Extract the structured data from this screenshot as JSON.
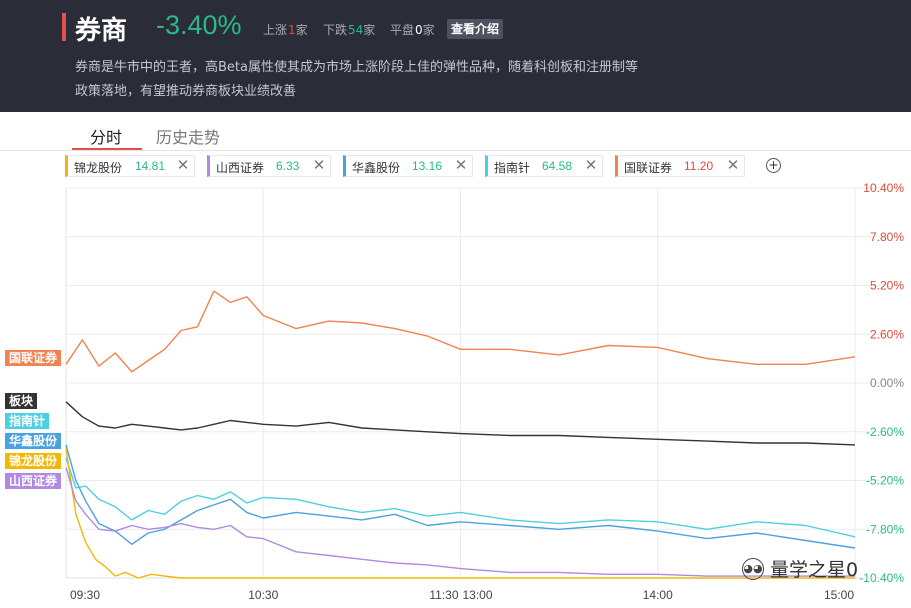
{
  "header": {
    "title": "券商",
    "change": "-3.40%",
    "up_label": "上涨",
    "up_count": "1",
    "down_label": "下跌",
    "down_count": "54",
    "flat_label": "平盘",
    "flat_count": "0",
    "unit": "家",
    "intro_button": "查看介绍",
    "description_line1": "券商是牛市中的王者，高Beta属性使其成为市场上涨阶段上佳的弹性品种，随着科创板和注册制等",
    "description_line2": "政策落地，有望推动券商板块业绩改善"
  },
  "tabs": [
    "分时",
    "历史走势"
  ],
  "chips": [
    {
      "name": "锦龙股份",
      "price": "14.81",
      "color": "#f2b705",
      "price_color": "#2ab989"
    },
    {
      "name": "山西证券",
      "price": "6.33",
      "color": "#b189e0",
      "price_color": "#2ab989"
    },
    {
      "name": "华鑫股份",
      "price": "13.16",
      "color": "#4aa3df",
      "price_color": "#2ab989"
    },
    {
      "name": "指南针",
      "price": "64.58",
      "color": "#4dd0e1",
      "price_color": "#2ab989"
    },
    {
      "name": "国联证券",
      "price": "11.20",
      "color": "#f0834f",
      "price_color": "#e04b3a"
    }
  ],
  "watermark": "量学之星0",
  "chart_data": {
    "type": "line",
    "x_ticks": [
      "09:30",
      "10:30",
      "11:30",
      "13:00",
      "14:00",
      "15:00"
    ],
    "y_ticks": [
      "10.40%",
      "7.80%",
      "5.20%",
      "2.60%",
      "0.00%",
      "-2.60%",
      "-5.20%",
      "-7.80%",
      "-10.40%"
    ],
    "ylim": [
      -10.4,
      10.4
    ],
    "series_labels": [
      "国联证券",
      "板块",
      "指南针",
      "华鑫股份",
      "锦龙股份",
      "山西证券"
    ],
    "series": [
      {
        "name": "国联证券",
        "color": "#f0834f",
        "x": [
          0,
          5,
          10,
          15,
          20,
          25,
          30,
          35,
          40,
          45,
          50,
          55,
          60,
          70,
          80,
          90,
          100,
          110,
          120,
          135,
          150,
          165,
          180,
          195,
          210,
          225,
          240
        ],
        "values": [
          1.0,
          2.3,
          0.9,
          1.6,
          0.6,
          1.2,
          1.8,
          2.8,
          3.0,
          4.9,
          4.3,
          4.6,
          3.6,
          2.9,
          3.3,
          3.2,
          2.9,
          2.5,
          1.8,
          1.8,
          1.5,
          2.0,
          1.9,
          1.3,
          1.0,
          1.0,
          1.4
        ]
      },
      {
        "name": "板块",
        "color": "#333333",
        "x": [
          0,
          5,
          10,
          15,
          20,
          25,
          30,
          35,
          40,
          45,
          50,
          55,
          60,
          70,
          80,
          90,
          100,
          110,
          120,
          135,
          150,
          165,
          180,
          195,
          210,
          225,
          240
        ],
        "values": [
          -1.0,
          -1.8,
          -2.3,
          -2.4,
          -2.2,
          -2.3,
          -2.4,
          -2.5,
          -2.4,
          -2.2,
          -2.0,
          -2.1,
          -2.2,
          -2.3,
          -2.1,
          -2.4,
          -2.5,
          -2.6,
          -2.7,
          -2.8,
          -2.8,
          -2.9,
          -3.0,
          -3.1,
          -3.2,
          -3.2,
          -3.3
        ]
      },
      {
        "name": "指南针",
        "color": "#4dd0e1",
        "x": [
          0,
          3,
          6,
          10,
          15,
          20,
          25,
          30,
          35,
          40,
          45,
          50,
          55,
          60,
          70,
          80,
          90,
          100,
          110,
          120,
          135,
          150,
          165,
          180,
          195,
          210,
          225,
          240
        ],
        "values": [
          -4.0,
          -5.6,
          -5.5,
          -6.2,
          -6.6,
          -7.3,
          -6.8,
          -7.0,
          -6.3,
          -6.0,
          -6.2,
          -5.8,
          -6.4,
          -6.1,
          -6.2,
          -6.6,
          -6.9,
          -6.7,
          -7.1,
          -6.9,
          -7.3,
          -7.5,
          -7.3,
          -7.4,
          -7.8,
          -7.4,
          -7.6,
          -8.2
        ]
      },
      {
        "name": "华鑫股份",
        "color": "#4aa3df",
        "x": [
          0,
          3,
          6,
          10,
          15,
          20,
          25,
          30,
          35,
          40,
          45,
          50,
          55,
          60,
          70,
          80,
          90,
          100,
          110,
          120,
          135,
          150,
          165,
          180,
          195,
          210,
          225,
          240
        ],
        "values": [
          -3.3,
          -5.2,
          -6.3,
          -7.5,
          -7.9,
          -8.6,
          -8.0,
          -7.8,
          -7.3,
          -6.8,
          -6.5,
          -6.2,
          -6.9,
          -7.2,
          -6.9,
          -7.1,
          -7.3,
          -7.0,
          -7.6,
          -7.4,
          -7.6,
          -7.8,
          -7.6,
          -7.9,
          -8.3,
          -8.0,
          -8.4,
          -8.8
        ]
      },
      {
        "name": "锦龙股份",
        "color": "#f2b705",
        "x": [
          0,
          3,
          6,
          9,
          12,
          15,
          18,
          22,
          26,
          30,
          35,
          40,
          50,
          60,
          80,
          100,
          120,
          140,
          160,
          180,
          200,
          220,
          240
        ],
        "values": [
          -3.5,
          -7.0,
          -8.5,
          -9.4,
          -9.8,
          -10.3,
          -10.1,
          -10.4,
          -10.2,
          -10.3,
          -10.4,
          -10.4,
          -10.4,
          -10.4,
          -10.4,
          -10.4,
          -10.4,
          -10.4,
          -10.4,
          -10.4,
          -10.4,
          -10.4,
          -10.4
        ]
      },
      {
        "name": "山西证券",
        "color": "#b189e0",
        "x": [
          0,
          3,
          6,
          10,
          15,
          20,
          25,
          30,
          35,
          40,
          45,
          50,
          55,
          60,
          70,
          80,
          90,
          100,
          110,
          120,
          135,
          150,
          165,
          180,
          195,
          210,
          225,
          240
        ],
        "values": [
          -4.5,
          -6.3,
          -7.0,
          -7.8,
          -7.9,
          -7.6,
          -7.8,
          -7.7,
          -7.5,
          -7.7,
          -7.8,
          -7.6,
          -8.2,
          -8.3,
          -9.0,
          -9.2,
          -9.4,
          -9.6,
          -9.7,
          -9.9,
          -10.1,
          -10.1,
          -10.2,
          -10.2,
          -10.3,
          -10.3,
          -10.3,
          -10.3
        ]
      }
    ]
  }
}
